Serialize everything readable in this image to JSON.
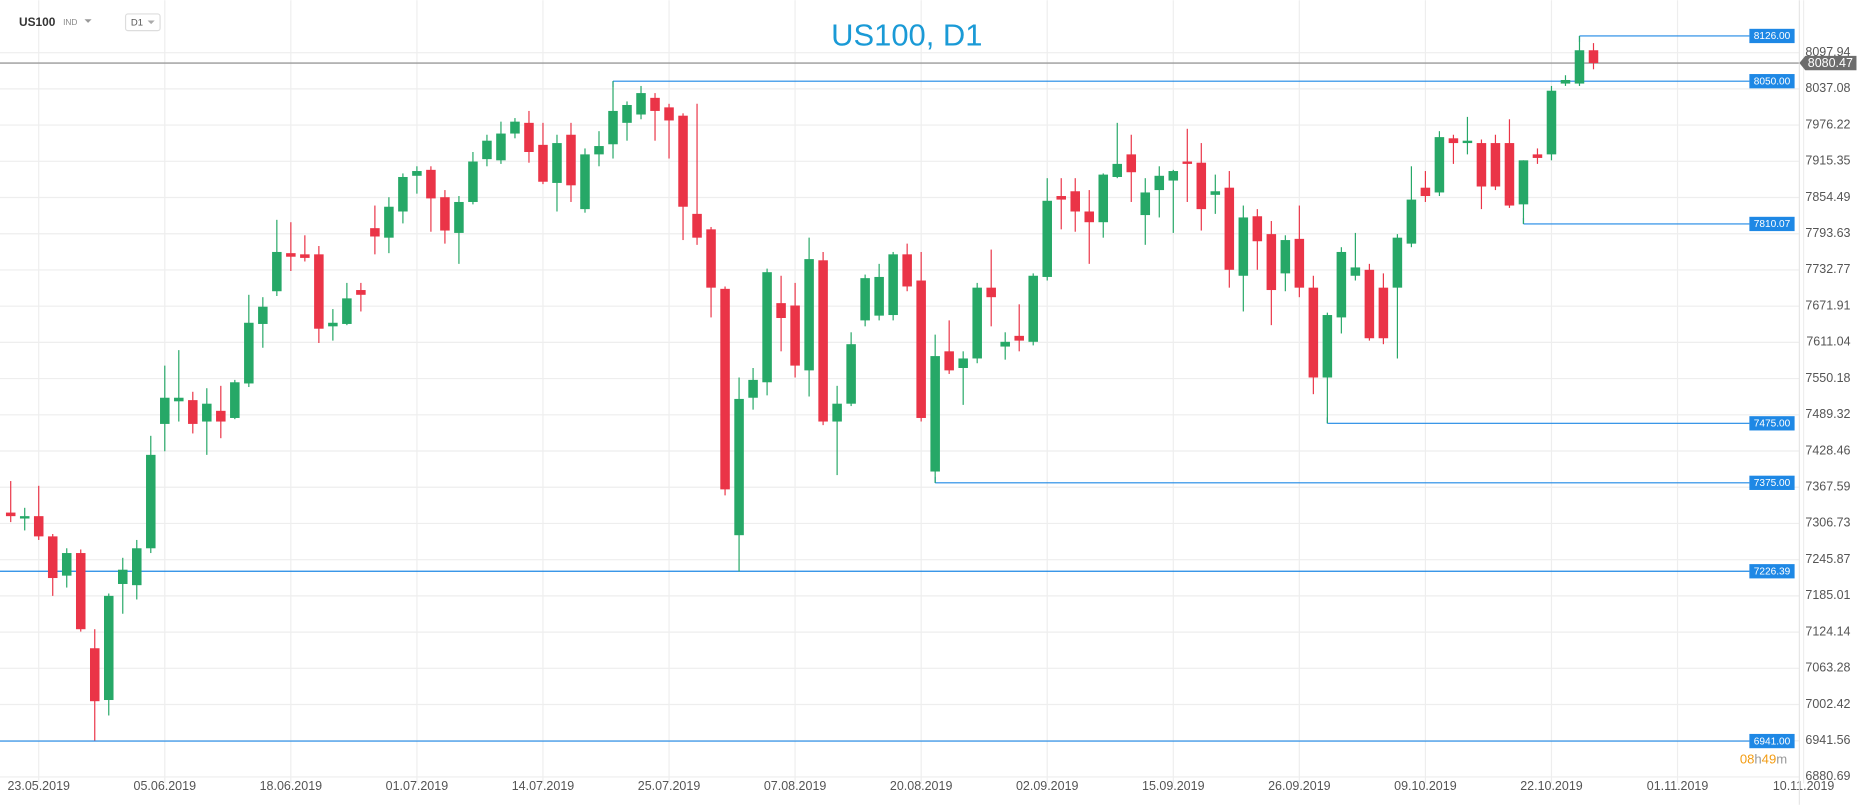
{
  "chart_data": {
    "type": "candlestick",
    "title": "US100, D1",
    "symbol": "US100",
    "market": "IND",
    "interval": "D1",
    "countdown": [
      "08",
      "h",
      "49",
      "m"
    ],
    "up_color": "#26a867",
    "down_color": "#ea3447",
    "level_color": "#1e88e5",
    "last_price": 8080.47,
    "grid": true,
    "categories": [
      null,
      null,
      "23.05.2019",
      null,
      null,
      null,
      null,
      null,
      null,
      null,
      null,
      "05.06.2019",
      null,
      null,
      null,
      null,
      null,
      null,
      null,
      null,
      "18.06.2019",
      null,
      null,
      null,
      null,
      null,
      null,
      null,
      null,
      "01.07.2019",
      null,
      null,
      null,
      null,
      null,
      null,
      null,
      null,
      "14.07.2019",
      null,
      null,
      null,
      null,
      null,
      null,
      null,
      null,
      "25.07.2019",
      null,
      null,
      null,
      null,
      null,
      null,
      null,
      null,
      "07.08.2019",
      null,
      null,
      null,
      null,
      null,
      null,
      null,
      null,
      "20.08.2019",
      null,
      null,
      null,
      null,
      null,
      null,
      null,
      null,
      "02.09.2019",
      null,
      null,
      null,
      null,
      null,
      null,
      null,
      null,
      "15.09.2019",
      null,
      null,
      null,
      null,
      null,
      null,
      null,
      null,
      "26.09.2019",
      null,
      null,
      null,
      null,
      null,
      null,
      null,
      null,
      "09.10.2019",
      null,
      null,
      null,
      null,
      null,
      null,
      null,
      null,
      "22.10.2019",
      null,
      null,
      null,
      null,
      null,
      null,
      null,
      null,
      "01.11.2019",
      null,
      null,
      null,
      null,
      null,
      null,
      null,
      null,
      "10.11.2019"
    ],
    "open": [
      7325,
      7315,
      7319,
      7285,
      7219,
      7257,
      7097,
      7010,
      7205,
      7203,
      7265,
      7474,
      7512,
      7514,
      7478,
      7496,
      7484,
      7542,
      7642,
      7697,
      7761,
      7759,
      7759,
      7638,
      7642,
      7699,
      7803,
      7787,
      7831,
      7891,
      7901,
      7855,
      7795,
      7847,
      7919,
      7917,
      7962,
      7980,
      7943,
      7879,
      7960,
      7835,
      7927,
      7944,
      7980,
      7994,
      8022,
      8006,
      7992,
      7827,
      7801,
      7701,
      7287,
      7518,
      7544,
      7677,
      7673,
      7564,
      7749,
      7478,
      7508,
      7648,
      7656,
      7657,
      7759,
      7715,
      7394,
      7596,
      7568,
      7584,
      7703,
      7604,
      7622,
      7612,
      7721,
      7857,
      7865,
      7831,
      7813,
      7889,
      7927,
      7825,
      7867,
      7883,
      7915,
      7913,
      7859,
      7871,
      7723,
      7823,
      7793,
      7727,
      7785,
      7703,
      7552,
      7653,
      7723,
      7733,
      7703,
      7703,
      7777,
      7871,
      7863,
      7954,
      7946,
      7946,
      7946,
      7946,
      7843,
      7927,
      7927,
      8046,
      8046,
      8102,
      null,
      null,
      null,
      null,
      null,
      null,
      null,
      null,
      null,
      null,
      null,
      null,
      null,
      null,
      null
    ],
    "high": [
      7378,
      7333,
      7370,
      7289,
      7265,
      7263,
      7129,
      7189,
      7249,
      7279,
      7454,
      7572,
      7598,
      7528,
      7534,
      7538,
      7548,
      7691,
      7687,
      7817,
      7813,
      7791,
      7773,
      7667,
      7711,
      7711,
      7841,
      7855,
      7895,
      7907,
      7907,
      7867,
      7857,
      7931,
      7960,
      7982,
      7988,
      8000,
      7980,
      7960,
      7980,
      7937,
      7966,
      8050,
      8016,
      8042,
      8030,
      8012,
      7996,
      8012,
      7805,
      7705,
      7552,
      7568,
      7735,
      7723,
      7711,
      7787,
      7763,
      7538,
      7628,
      7725,
      7743,
      7763,
      7777,
      7763,
      7624,
      7648,
      7596,
      7711,
      7767,
      7628,
      7675,
      7727,
      7887,
      7887,
      7887,
      7867,
      7895,
      7980,
      7960,
      7887,
      7907,
      7901,
      7970,
      7946,
      7893,
      7899,
      7841,
      7835,
      7815,
      7791,
      7841,
      7723,
      7661,
      7771,
      7795,
      7743,
      7727,
      7793,
      7907,
      7899,
      7966,
      7960,
      7990,
      7952,
      7960,
      7986,
      7917,
      7937,
      8042,
      8060,
      8126,
      8114,
      null,
      null,
      null,
      null,
      null,
      null,
      null,
      null,
      null,
      null,
      null,
      null,
      null,
      null,
      null
    ],
    "low": [
      7309,
      7295,
      7279,
      7185,
      7199,
      7125,
      6942,
      6984,
      7155,
      7179,
      7257,
      7428,
      7478,
      7458,
      7422,
      7450,
      7482,
      7536,
      7602,
      7689,
      7731,
      7747,
      7610,
      7614,
      7640,
      7663,
      7759,
      7761,
      7811,
      7861,
      7797,
      7777,
      7743,
      7843,
      7907,
      7911,
      7954,
      7913,
      7877,
      7831,
      7847,
      7829,
      7907,
      7920,
      7950,
      7986,
      7950,
      7920,
      7783,
      7775,
      7653,
      7354,
      7226,
      7498,
      7522,
      7596,
      7552,
      7520,
      7472,
      7388,
      7504,
      7638,
      7648,
      7648,
      7697,
      7478,
      7375,
      7558,
      7506,
      7576,
      7638,
      7582,
      7596,
      7606,
      7715,
      7801,
      7797,
      7743,
      7787,
      7887,
      7847,
      7775,
      7821,
      7795,
      7847,
      7799,
      7827,
      7703,
      7663,
      7733,
      7640,
      7697,
      7687,
      7524,
      7475,
      7626,
      7715,
      7614,
      7608,
      7584,
      7771,
      7847,
      7857,
      7911,
      7927,
      7835,
      7867,
      7837,
      7810.07,
      7911,
      7917,
      8042,
      8042,
      8070,
      null,
      null,
      null,
      null,
      null,
      null,
      null,
      null,
      null,
      null,
      null,
      null,
      null,
      null,
      null
    ],
    "close": [
      7319,
      7319,
      7285,
      7215,
      7257,
      7129,
      7008,
      7185,
      7229,
      7265,
      7422,
      7518,
      7518,
      7474,
      7508,
      7478,
      7544,
      7644,
      7671,
      7763,
      7755,
      7753,
      7634,
      7644,
      7685,
      7691,
      7789,
      7839,
      7889,
      7899,
      7853,
      7799,
      7847,
      7915,
      7950,
      7962,
      7982,
      7931,
      7881,
      7946,
      7875,
      7927,
      7941,
      8000,
      8010,
      8030,
      8000,
      7984,
      7839,
      7787,
      7703,
      7364,
      7516,
      7548,
      7729,
      7652,
      7572,
      7751,
      7478,
      7508,
      7608,
      7719,
      7721,
      7759,
      7705,
      7484,
      7588,
      7564,
      7584,
      7703,
      7687,
      7612,
      7614,
      7723,
      7849,
      7851,
      7831,
      7813,
      7893,
      7911,
      7897,
      7863,
      7891,
      7899,
      7911,
      7835,
      7865,
      7733,
      7821,
      7781,
      7699,
      7783,
      7703,
      7552,
      7657,
      7763,
      7737,
      7618,
      7618,
      7787,
      7851,
      7857,
      7956,
      7946,
      7950,
      7873,
      7873,
      7841,
      7917,
      7921,
      8034,
      8052,
      8102,
      8080.47,
      null,
      null,
      null,
      null,
      null,
      null,
      null,
      null,
      null,
      null,
      null,
      null,
      null,
      null,
      null
    ],
    "levels": [
      {
        "value": 8126,
        "label": "8126.00"
      },
      {
        "value": 8050,
        "label": "8050.00"
      },
      {
        "value": 7810.07,
        "label": "7810.07"
      },
      {
        "value": 7475,
        "label": "7475.00"
      },
      {
        "value": 7375,
        "label": "7375.00"
      },
      {
        "value": 7226.39,
        "label": "7226.39"
      },
      {
        "value": 6941,
        "label": "6941.00"
      }
    ],
    "ylim": [
      6870,
      8160
    ],
    "yticks": [
      8097.94,
      8037.08,
      7976.22,
      7915.35,
      7854.49,
      7793.63,
      7732.77,
      7671.91,
      7611.04,
      7550.18,
      7489.32,
      7428.46,
      7367.59,
      7306.73,
      7245.87,
      7185.01,
      7124.14,
      7063.28,
      7002.42,
      6941.56,
      6880.69
    ]
  }
}
